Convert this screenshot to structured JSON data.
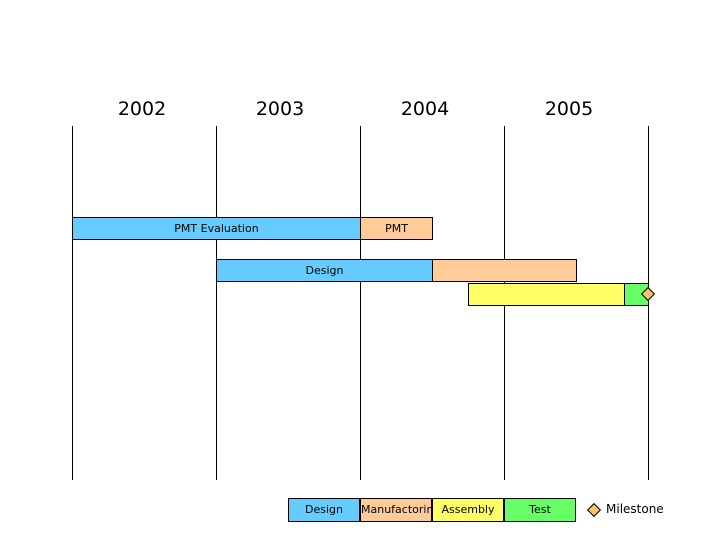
{
  "years": [
    "2002",
    "2003",
    "2004",
    "2005"
  ],
  "bars": [
    {
      "label": "PMT Evaluation",
      "color": "#66ccff"
    },
    {
      "label": "PMT",
      "color": "#ffcc99"
    },
    {
      "label": "Design",
      "color": "#66ccff"
    },
    {
      "label": "",
      "color": "#ffcc99"
    },
    {
      "label": "",
      "color": "#ffff66"
    },
    {
      "label": "",
      "color": "#66ff66"
    }
  ],
  "legend": {
    "design": "Design",
    "manufactoring": "Manufactoring",
    "assembly": "Assembly",
    "test": "Test",
    "milestone": "Milestone"
  },
  "colors": {
    "design": "#66ccff",
    "manufactoring": "#ffcc99",
    "assembly": "#ffff66",
    "test": "#66ff66",
    "milestone": "#f7c26b"
  }
}
